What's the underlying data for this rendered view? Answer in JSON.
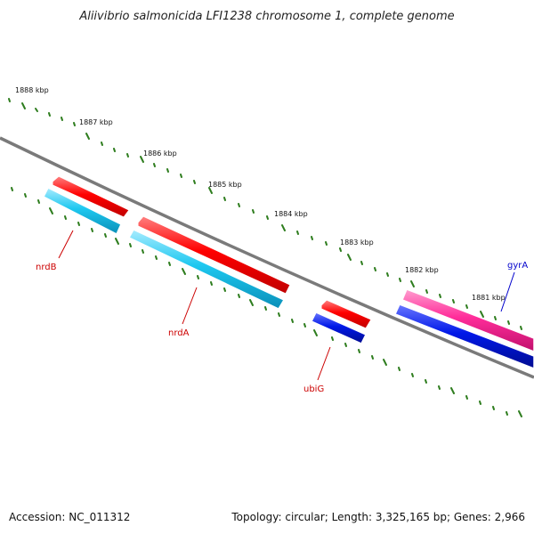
{
  "title": "Aliivibrio salmonicida LFI1238 chromosome 1, complete genome",
  "footer": {
    "accession": "Accession: NC_011312",
    "topology": "Topology: circular; Length: 3,325,165 bp; Genes: 2,966"
  },
  "colors": {
    "backbone": "#7a7a7a",
    "tick": "#2e7d1e",
    "forward_cds": "#ff0000",
    "reverse_cds": "#1ec8f0",
    "gyr_forward": "#ff2d9a",
    "gyr_reverse": "#0018e8",
    "label_red": "#cc0000",
    "label_blue": "#0000cc"
  },
  "kbp_labels": [
    "1888 kbp",
    "1887 kbp",
    "1886 kbp",
    "1885 kbp",
    "1884 kbp",
    "1883 kbp",
    "1882 kbp",
    "1881 kbp"
  ],
  "genes": [
    {
      "name": "nrdB"
    },
    {
      "name": "nrdA"
    },
    {
      "name": "ubiG"
    },
    {
      "name": "gyrA"
    }
  ]
}
